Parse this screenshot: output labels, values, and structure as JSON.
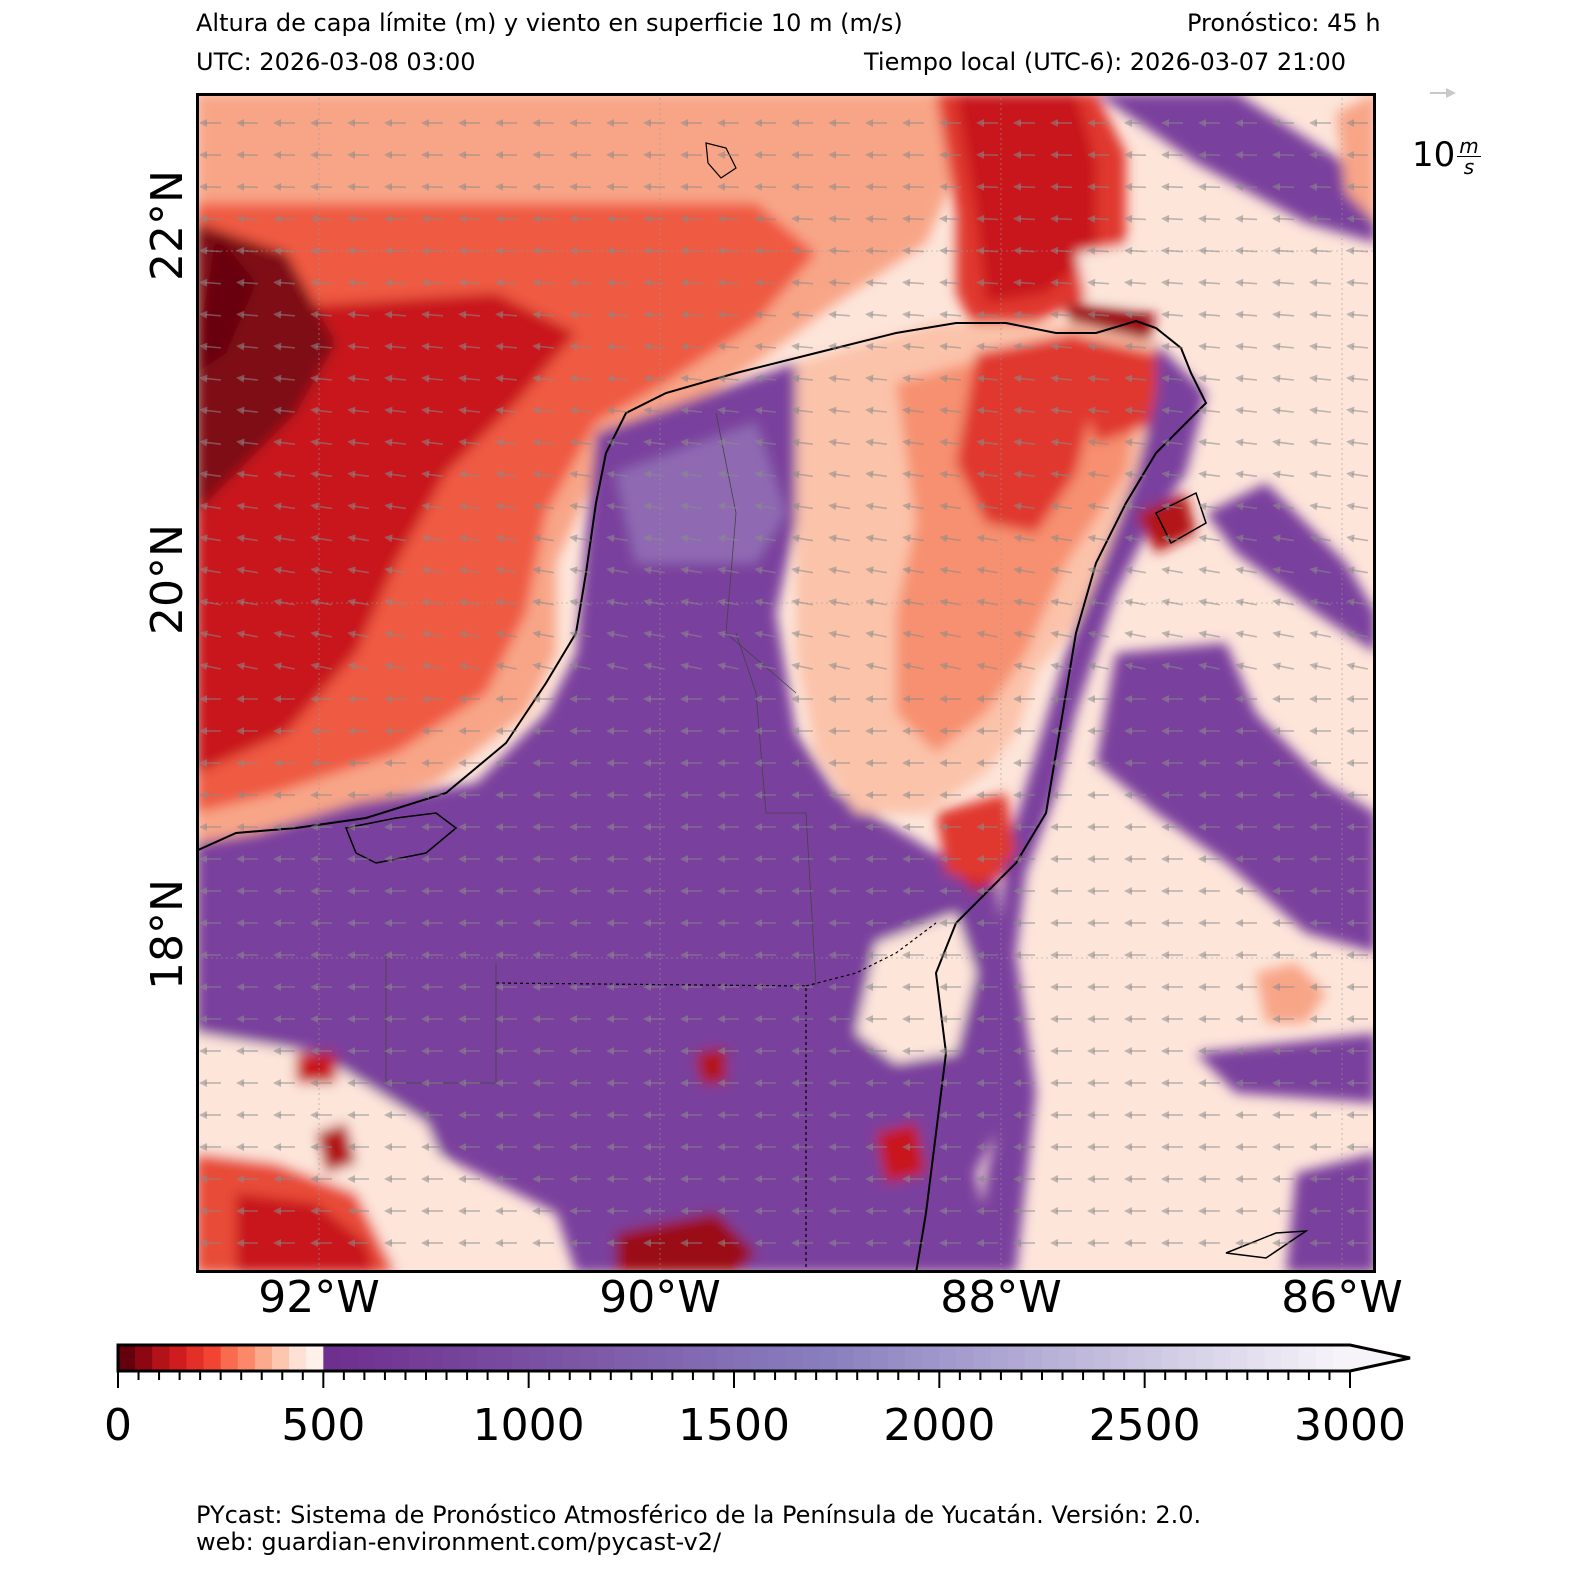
{
  "header": {
    "title": "Altura de capa límite (m) y viento en superficie 10 m (m/s)",
    "forecast": "Pronóstico: 45 h",
    "utc": "UTC:  2026-03-08 03:00",
    "local": "Tiempo local (UTC-6): 2026-03-07 21:00"
  },
  "map": {
    "lat_labels": [
      "22°N",
      "20°N",
      "18°N"
    ],
    "lon_labels": [
      "92°W",
      "90°W",
      "88°W",
      "86°W"
    ],
    "lon_range": [
      -92.7,
      -85.8
    ],
    "lat_range": [
      15.3,
      22.8
    ],
    "wind_reference": {
      "value": "10",
      "unit_num": "m",
      "unit_den": "s"
    },
    "colors": {
      "low_dark": "#67000d",
      "mid_red": "#e0382d",
      "light_salmon": "#f8a587",
      "pale": "#fde5da",
      "purple": "#7a3f9d",
      "purple_light": "#8f6bb3",
      "arrow": "#8a8a8a"
    }
  },
  "colorbar": {
    "tick_labels": [
      "0",
      "500",
      "1000",
      "1500",
      "2000",
      "2500",
      "3000"
    ],
    "min": 0,
    "max": 3000,
    "extend": "max",
    "red_colors": [
      "#67000d",
      "#8d0712",
      "#b21218",
      "#cf1d1f",
      "#e32f27",
      "#f14432",
      "#f86b4f",
      "#fb8868",
      "#fcaa8d",
      "#fdc7af",
      "#fee1d4",
      "#fff1ea"
    ],
    "purple_start": "#6f2f8e",
    "purple_mid": "#8a80bf",
    "light_end": "#f7f4f9"
  },
  "footer": {
    "line1": "PYcast: Sistema de Pronóstico Atmosférico de la Península de Yucatán. Versión: 2.0.",
    "line2": "web: guardian-environment.com/pycast-v2/"
  }
}
